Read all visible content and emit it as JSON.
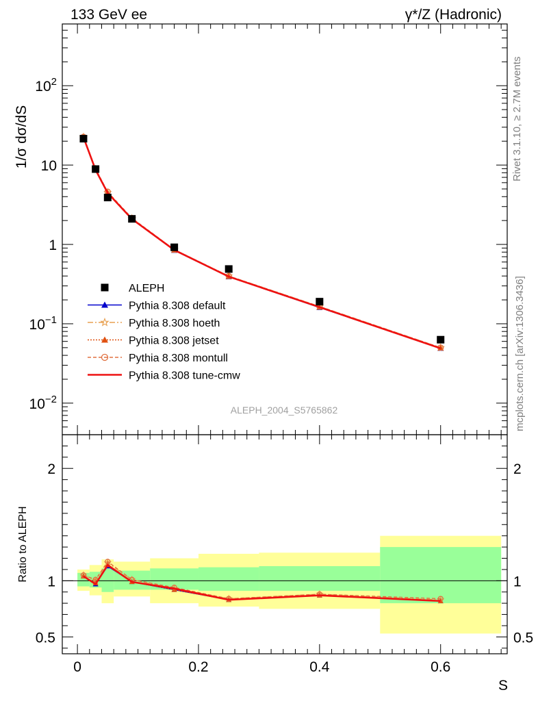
{
  "header": {
    "left": "133 GeV ee",
    "right": "γ*/Z (Hadronic)"
  },
  "side_labels": {
    "top": "Rivet 3.1.10, ≥ 2.7M events",
    "bottom": "mcplots.cern.ch [arXiv:1306.3436]"
  },
  "watermark": "ALEPH_2004_S5765862",
  "chart_data": [
    {
      "type": "scatter",
      "panel": "main",
      "ylabel": "1/σ  dσ/dS",
      "yscale": "log",
      "ylim": [
        0.004,
        600
      ],
      "xlim": [
        -0.025,
        0.71
      ],
      "ytick_labels": [
        "10^-2",
        "10^-1",
        "1",
        "10",
        "10^2"
      ],
      "x": [
        0.01,
        0.03,
        0.05,
        0.09,
        0.16,
        0.25,
        0.4,
        0.6
      ],
      "series": [
        {
          "name": "ALEPH",
          "style": "data",
          "color": "#000000",
          "values": [
            21.5,
            8.9,
            3.9,
            2.1,
            0.92,
            0.49,
            0.19,
            0.063
          ]
        },
        {
          "name": "Pythia 8.308 default",
          "style": "line-triangle",
          "color": "#0000cc",
          "values": [
            22.2,
            8.8,
            4.4,
            2.1,
            0.84,
            0.39,
            0.16,
            0.049
          ]
        },
        {
          "name": "Pythia 8.308 hoeth",
          "style": "dashdot-star",
          "color": "#e8a050",
          "values": [
            22.6,
            8.9,
            4.5,
            2.12,
            0.86,
            0.4,
            0.165,
            0.05
          ]
        },
        {
          "name": "Pythia 8.308 jetset",
          "style": "dotted-triangle",
          "color": "#e05010",
          "values": [
            22.3,
            8.8,
            4.45,
            2.1,
            0.85,
            0.395,
            0.162,
            0.0495
          ]
        },
        {
          "name": "Pythia 8.308 montull",
          "style": "dashed-circle",
          "color": "#e07040",
          "values": [
            22.6,
            9.0,
            4.6,
            2.15,
            0.86,
            0.4,
            0.165,
            0.05
          ]
        },
        {
          "name": "Pythia 8.308 tune-cmw",
          "style": "solid",
          "color": "#ee1111",
          "values": [
            22.3,
            8.7,
            4.45,
            2.09,
            0.85,
            0.393,
            0.162,
            0.049
          ]
        }
      ]
    },
    {
      "type": "line",
      "panel": "ratio",
      "ylabel": "Ratio to ALEPH",
      "xlabel": "S",
      "ylim": [
        0.35,
        2.3
      ],
      "xlim": [
        -0.025,
        0.71
      ],
      "xtick_labels": [
        "0",
        "0.2",
        "0.4",
        "0.6"
      ],
      "ytick_labels": [
        "0.5",
        "1",
        "2"
      ],
      "bands": {
        "edges": [
          0.0,
          0.02,
          0.04,
          0.06,
          0.12,
          0.2,
          0.3,
          0.5,
          0.7
        ],
        "green": [
          [
            0.95,
            1.07
          ],
          [
            0.94,
            1.08
          ],
          [
            0.9,
            1.11
          ],
          [
            0.92,
            1.09
          ],
          [
            0.92,
            1.11
          ],
          [
            0.91,
            1.12
          ],
          [
            0.91,
            1.13
          ],
          [
            0.8,
            1.3
          ]
        ],
        "yellow": [
          [
            0.91,
            1.1
          ],
          [
            0.87,
            1.14
          ],
          [
            0.8,
            1.19
          ],
          [
            0.86,
            1.17
          ],
          [
            0.8,
            1.2
          ],
          [
            0.77,
            1.24
          ],
          [
            0.75,
            1.25
          ],
          [
            0.53,
            1.4
          ]
        ],
        "green_color": "#99ff99",
        "yellow_color": "#ffff99"
      },
      "x": [
        0.01,
        0.03,
        0.05,
        0.09,
        0.16,
        0.25,
        0.4,
        0.6
      ],
      "series": [
        {
          "name": "Pythia 8.308 default",
          "color": "#0000cc",
          "values": [
            1.04,
            0.97,
            1.13,
            0.99,
            0.92,
            0.83,
            0.87,
            0.82
          ]
        },
        {
          "name": "Pythia 8.308 hoeth",
          "color": "#e8a050",
          "values": [
            1.05,
            1.0,
            1.16,
            1.01,
            0.93,
            0.84,
            0.88,
            0.83
          ]
        },
        {
          "name": "Pythia 8.308 jetset",
          "color": "#e05010",
          "values": [
            1.04,
            0.98,
            1.14,
            0.99,
            0.92,
            0.83,
            0.87,
            0.82
          ]
        },
        {
          "name": "Pythia 8.308 montull",
          "color": "#e07040",
          "values": [
            1.05,
            1.01,
            1.17,
            1.01,
            0.94,
            0.84,
            0.88,
            0.84
          ]
        },
        {
          "name": "Pythia 8.308 tune-cmw",
          "color": "#ee1111",
          "values": [
            1.04,
            0.97,
            1.14,
            0.99,
            0.93,
            0.83,
            0.87,
            0.82
          ]
        }
      ]
    }
  ]
}
